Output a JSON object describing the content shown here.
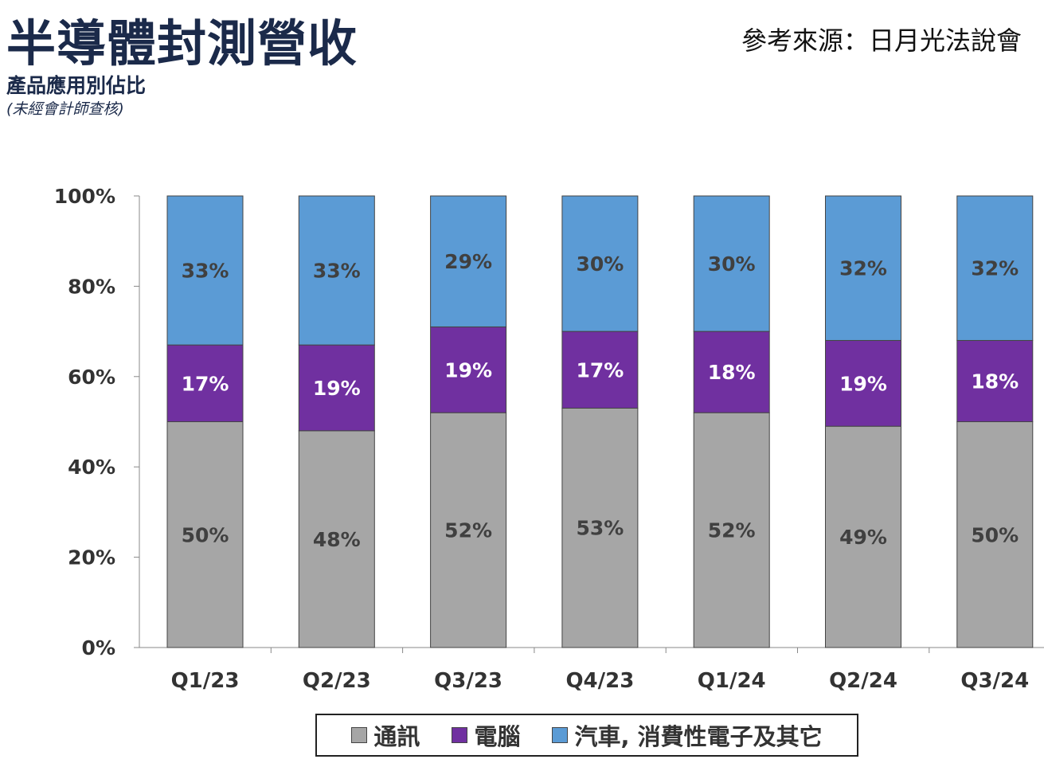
{
  "header": {
    "title": "半導體封測營收",
    "subtitle": "產品應用別佔比",
    "note": "(未經會計師查核)",
    "source": "參考來源：日月光法說會"
  },
  "chart_data": {
    "type": "bar",
    "stacked": true,
    "categories": [
      "Q1/23",
      "Q2/23",
      "Q3/23",
      "Q4/23",
      "Q1/24",
      "Q2/24",
      "Q3/24"
    ],
    "ylim": [
      0,
      100
    ],
    "yticks": [
      "0%",
      "20%",
      "40%",
      "60%",
      "80%",
      "100%"
    ],
    "grid": false,
    "legend_position": "bottom",
    "series": [
      {
        "name": "通訊",
        "color": "#a6a6a6",
        "label_color": "#404040",
        "values": [
          50,
          48,
          52,
          53,
          52,
          49,
          50
        ]
      },
      {
        "name": "電腦",
        "color": "#7030a0",
        "label_color": "#ffffff",
        "values": [
          17,
          19,
          19,
          17,
          18,
          19,
          18
        ]
      },
      {
        "name": "汽車, 消費性電子及其它",
        "color": "#5b9bd5",
        "label_color": "#404040",
        "values": [
          33,
          33,
          29,
          30,
          30,
          32,
          32
        ]
      }
    ]
  }
}
